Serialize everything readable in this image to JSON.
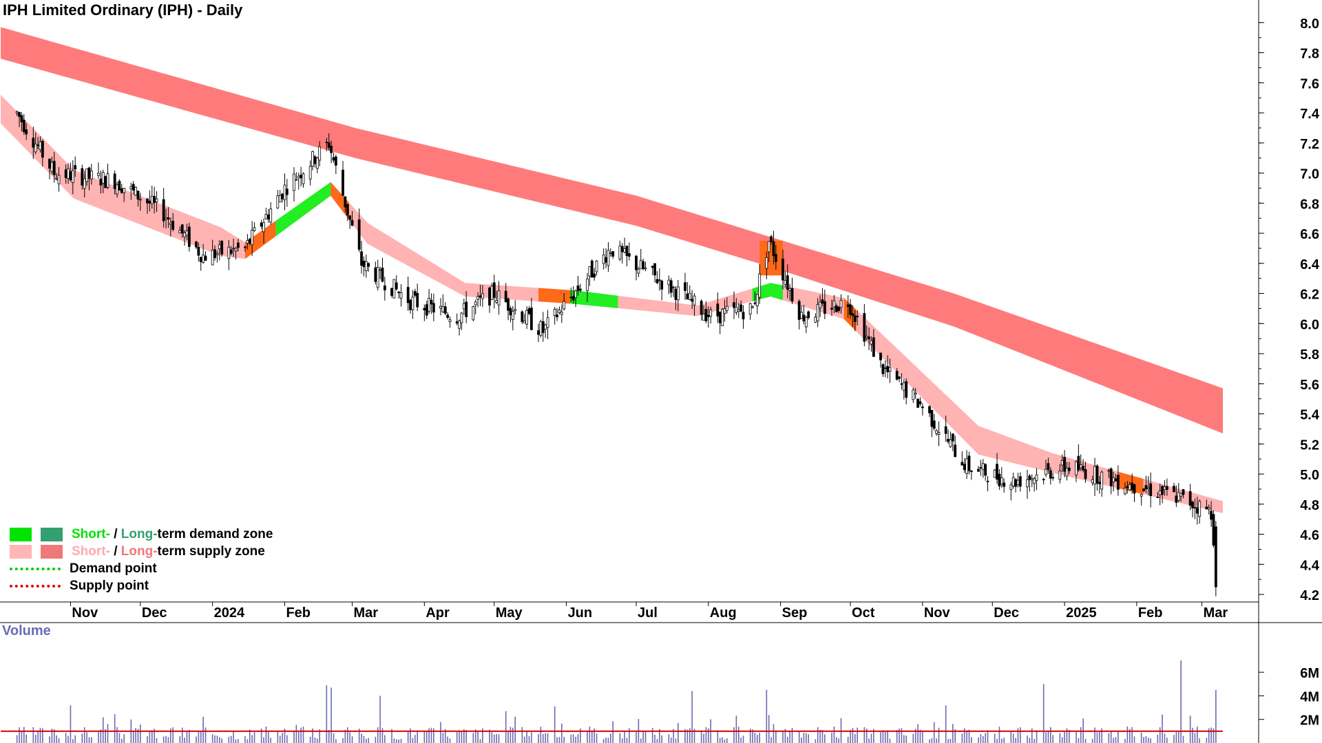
{
  "title": "IPH Limited Ordinary (IPH) - Daily",
  "volume_label": "Volume",
  "legend": {
    "row1": {
      "short": "Short-",
      "sep": " / ",
      "long": "Long-",
      "rest": "term demand zone",
      "short_color": "#00ff00",
      "long_color": "#33a070"
    },
    "row2": {
      "short": "Short-",
      "sep": " / ",
      "long": "Long-",
      "rest": "term supply zone",
      "short_color": "#ffb6b6",
      "long_color": "#f07878"
    },
    "row3": {
      "label": "Demand point",
      "color": "#00cc00"
    },
    "row4": {
      "label": "Supply point",
      "color": "#dd0000"
    }
  },
  "colors": {
    "long_supply": "#ff7b7b",
    "short_supply": "#ffb3b3",
    "short_demand": "#22ee22",
    "zone_orange": "#ff6a1a",
    "candle": "#000000",
    "volume_bar": "#6a6ab4",
    "volume_ma": "#dd0000"
  },
  "chart_data": {
    "type": "candlestick",
    "title": "IPH Limited Ordinary (IPH) - Daily",
    "x_tick_labels": [
      "Nov",
      "Dec",
      "2024",
      "Feb",
      "Mar",
      "Apr",
      "May",
      "Jun",
      "Jul",
      "Aug",
      "Sep",
      "Oct",
      "Nov",
      "Dec",
      "2025",
      "Feb",
      "Mar"
    ],
    "y_tick_labels": [
      "4.2",
      "4.4",
      "4.6",
      "4.8",
      "5.0",
      "5.2",
      "5.4",
      "5.6",
      "5.8",
      "6.0",
      "6.2",
      "6.4",
      "6.6",
      "6.8",
      "7.0",
      "7.2",
      "7.4",
      "7.6",
      "7.8",
      "8.0"
    ],
    "ylim": [
      4.15,
      8.15
    ],
    "price_key_points": [
      {
        "date": "2023-10-09",
        "close": 7.4
      },
      {
        "date": "2023-10-25",
        "close": 7.0
      },
      {
        "date": "2023-11-20",
        "close": 6.95
      },
      {
        "date": "2023-12-10",
        "close": 6.75
      },
      {
        "date": "2023-12-28",
        "close": 6.45
      },
      {
        "date": "2024-01-15",
        "close": 6.5
      },
      {
        "date": "2024-02-01",
        "close": 6.9
      },
      {
        "date": "2024-02-20",
        "close": 7.2
      },
      {
        "date": "2024-03-05",
        "close": 6.4
      },
      {
        "date": "2024-03-26",
        "close": 6.15
      },
      {
        "date": "2024-04-15",
        "close": 6.05
      },
      {
        "date": "2024-05-01",
        "close": 6.2
      },
      {
        "date": "2024-05-22",
        "close": 5.95
      },
      {
        "date": "2024-06-07",
        "close": 6.25
      },
      {
        "date": "2024-06-20",
        "close": 6.5
      },
      {
        "date": "2024-07-15",
        "close": 6.25
      },
      {
        "date": "2024-08-02",
        "close": 6.05
      },
      {
        "date": "2024-08-20",
        "close": 6.1
      },
      {
        "date": "2024-08-27",
        "close": 6.55
      },
      {
        "date": "2024-09-10",
        "close": 6.05
      },
      {
        "date": "2024-09-30",
        "close": 6.15
      },
      {
        "date": "2024-10-15",
        "close": 5.7
      },
      {
        "date": "2024-11-01",
        "close": 5.45
      },
      {
        "date": "2024-11-20",
        "close": 5.05
      },
      {
        "date": "2024-12-10",
        "close": 4.95
      },
      {
        "date": "2025-01-03",
        "close": 5.05
      },
      {
        "date": "2025-01-25",
        "close": 4.95
      },
      {
        "date": "2025-02-18",
        "close": 4.85
      },
      {
        "date": "2025-03-05",
        "close": 4.75
      },
      {
        "date": "2025-03-08",
        "close": 4.25
      }
    ],
    "long_term_supply_zone": {
      "top": [
        [
          0,
          7.97
        ],
        [
          0.29,
          7.3
        ],
        [
          0.52,
          6.85
        ],
        [
          0.64,
          6.55
        ],
        [
          0.78,
          6.2
        ],
        [
          1.0,
          5.57
        ]
      ],
      "bottom": [
        [
          0,
          7.76
        ],
        [
          0.29,
          7.1
        ],
        [
          0.52,
          6.65
        ],
        [
          0.64,
          6.35
        ],
        [
          0.78,
          5.98
        ],
        [
          1.0,
          5.27
        ]
      ]
    },
    "short_term_zone": [
      [
        0,
        7.5,
        7.35
      ],
      [
        0.06,
        7.0,
        6.85
      ],
      [
        0.18,
        6.62,
        6.47
      ],
      [
        0.2,
        6.52,
        6.45
      ],
      [
        0.27,
        6.92,
        6.87
      ],
      [
        0.3,
        6.65,
        6.55
      ],
      [
        0.38,
        6.25,
        6.2
      ],
      [
        0.47,
        6.2,
        6.15
      ],
      [
        0.57,
        6.1,
        6.07
      ],
      [
        0.63,
        6.25,
        6.2
      ],
      [
        0.69,
        6.15,
        6.05
      ],
      [
        0.8,
        5.3,
        5.15
      ],
      [
        0.86,
        5.12,
        5.03
      ],
      [
        1.0,
        4.8,
        4.76
      ]
    ],
    "volume": {
      "y_tick_labels": [
        "2M",
        "4M",
        "6M"
      ],
      "ylim": [
        0,
        7000000
      ],
      "average": 1000000,
      "spikes": [
        {
          "date": "2023-11-01",
          "volume": 3200000
        },
        {
          "date": "2024-02-19",
          "volume": 4900000
        },
        {
          "date": "2024-02-21",
          "volume": 4700000
        },
        {
          "date": "2024-03-13",
          "volume": 4000000
        },
        {
          "date": "2024-05-06",
          "volume": 2700000
        },
        {
          "date": "2024-05-27",
          "volume": 3100000
        },
        {
          "date": "2024-07-25",
          "volume": 4400000
        },
        {
          "date": "2024-08-26",
          "volume": 4500000
        },
        {
          "date": "2024-11-11",
          "volume": 3200000
        },
        {
          "date": "2024-12-23",
          "volume": 5000000
        },
        {
          "date": "2025-02-20",
          "volume": 7000000
        },
        {
          "date": "2025-03-07",
          "volume": 4500000
        }
      ]
    }
  }
}
